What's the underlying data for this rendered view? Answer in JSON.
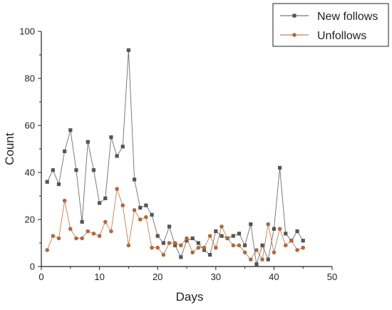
{
  "chart_data": {
    "type": "line",
    "title": "",
    "xlabel": "Days",
    "ylabel": "Count",
    "xlim": [
      0,
      50
    ],
    "ylim": [
      0,
      100
    ],
    "xticks": [
      "0",
      "10",
      "20",
      "30",
      "40",
      "50"
    ],
    "yticks": [
      "0",
      "20",
      "40",
      "60",
      "80",
      "100"
    ],
    "grid": false,
    "legend_position": "top-right",
    "x": [
      1,
      2,
      3,
      4,
      5,
      6,
      7,
      8,
      9,
      10,
      11,
      12,
      13,
      14,
      15,
      16,
      17,
      18,
      19,
      20,
      21,
      22,
      23,
      24,
      25,
      26,
      27,
      28,
      29,
      30,
      31,
      32,
      33,
      34,
      35,
      36,
      37,
      38,
      39,
      40,
      41,
      42,
      43,
      44,
      45
    ],
    "series": [
      {
        "name": "New follows",
        "color": "#555555",
        "marker": "square",
        "values": [
          36,
          41,
          35,
          49,
          58,
          41,
          19,
          53,
          41,
          27,
          29,
          55,
          47,
          51,
          92,
          37,
          25,
          26,
          22,
          13,
          10,
          17,
          9,
          4,
          11,
          12,
          10,
          7,
          5,
          15,
          13,
          12,
          13,
          14,
          9,
          18,
          1,
          9,
          3,
          16,
          42,
          14,
          11,
          15,
          11
        ]
      },
      {
        "name": "Unfollows",
        "color": "#b06a3b",
        "marker": "circle",
        "values": [
          7,
          13,
          12,
          28,
          16,
          12,
          12,
          15,
          14,
          13,
          19,
          15,
          33,
          26,
          9,
          24,
          20,
          21,
          8,
          8,
          5,
          10,
          10,
          9,
          12,
          6,
          8,
          8,
          13,
          8,
          17,
          12,
          9,
          9,
          6,
          3,
          7,
          3,
          18,
          6,
          16,
          9,
          11,
          7,
          8
        ]
      }
    ]
  }
}
